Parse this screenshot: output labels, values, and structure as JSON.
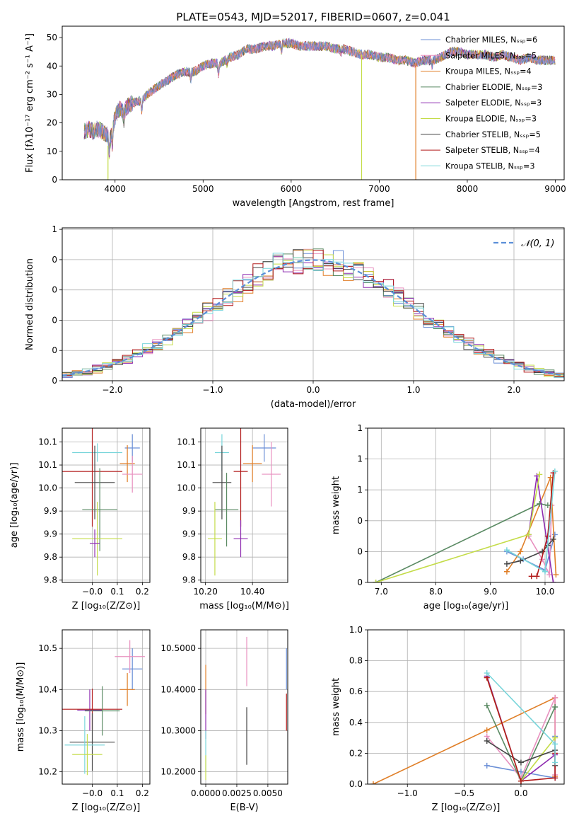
{
  "chart_data": [
    {
      "id": "spectrum",
      "type": "line",
      "title": "PLATE=0543, MJD=52017, FIBERID=0607, z=0.041",
      "xlabel": "wavelength [Angstrom, rest frame]",
      "ylabel": "Flux [fλ10⁻¹⁷ erg cm⁻² s⁻¹ A⁻¹]",
      "xlim": [
        3400,
        9100
      ],
      "ylim": [
        0,
        54
      ],
      "xticks": [
        4000,
        5000,
        6000,
        7000,
        8000,
        9000
      ],
      "yticks": [
        0,
        10,
        20,
        30,
        40,
        50
      ],
      "legend_position": "upper-right",
      "continuum": [
        [
          3650,
          17
        ],
        [
          3700,
          18
        ],
        [
          3750,
          17
        ],
        [
          3800,
          18
        ],
        [
          3850,
          17
        ],
        [
          3900,
          16
        ],
        [
          3950,
          15
        ],
        [
          4000,
          22
        ],
        [
          4050,
          25
        ],
        [
          4100,
          24
        ],
        [
          4150,
          26
        ],
        [
          4200,
          27
        ],
        [
          4300,
          28
        ],
        [
          4400,
          31
        ],
        [
          4500,
          33
        ],
        [
          4600,
          35
        ],
        [
          4700,
          37
        ],
        [
          4800,
          38
        ],
        [
          4900,
          38
        ],
        [
          5000,
          40
        ],
        [
          5100,
          41
        ],
        [
          5200,
          41
        ],
        [
          5300,
          43
        ],
        [
          5400,
          44
        ],
        [
          5500,
          46
        ],
        [
          5600,
          46
        ],
        [
          5700,
          47
        ],
        [
          5800,
          47
        ],
        [
          5900,
          48
        ],
        [
          6000,
          48
        ],
        [
          6100,
          47
        ],
        [
          6200,
          47
        ],
        [
          6300,
          47
        ],
        [
          6400,
          47
        ],
        [
          6500,
          46
        ],
        [
          6600,
          46
        ],
        [
          6700,
          45
        ],
        [
          6800,
          44
        ],
        [
          6900,
          44
        ],
        [
          7000,
          43
        ],
        [
          7100,
          43
        ],
        [
          7200,
          42
        ],
        [
          7300,
          42
        ],
        [
          7400,
          41
        ],
        [
          7500,
          42
        ],
        [
          7600,
          42
        ],
        [
          7700,
          43
        ],
        [
          7800,
          45
        ],
        [
          7900,
          45
        ],
        [
          8000,
          44
        ],
        [
          8100,
          44
        ],
        [
          8200,
          44
        ],
        [
          8300,
          43
        ],
        [
          8400,
          44
        ],
        [
          8500,
          43
        ],
        [
          8600,
          42
        ],
        [
          8700,
          43
        ],
        [
          8800,
          42
        ],
        [
          8900,
          42
        ],
        [
          9000,
          42
        ]
      ],
      "series": [
        {
          "name": "Chabrier MILES, Nₛₛₚ=6",
          "color": "#6b8fd6"
        },
        {
          "name": "Salpeter MILES, Nₛₛₚ=5",
          "color": "#e890bf"
        },
        {
          "name": "Kroupa MILES, Nₛₛₚ=4",
          "color": "#e07f28"
        },
        {
          "name": "Chabrier ELODIE, Nₛₛₚ=3",
          "color": "#5a8a63"
        },
        {
          "name": "Salpeter ELODIE, Nₛₛₚ=3",
          "color": "#8e2bb0"
        },
        {
          "name": "Kroupa ELODIE, Nₛₛₚ=3",
          "color": "#c4dc48"
        },
        {
          "name": "Chabrier STELIB, Nₛₛₚ=5",
          "color": "#444444"
        },
        {
          "name": "Salpeter STELIB, Nₛₛₚ=4",
          "color": "#b21a1a"
        },
        {
          "name": "Kroupa STELIB, Nₛₛₚ=3",
          "color": "#78d5da"
        }
      ],
      "spikes": [
        {
          "x": 3920,
          "y_from": 12,
          "y_to": 0,
          "color": "#c4dc48"
        },
        {
          "x": 6800,
          "y_from": 44,
          "y_to": 0,
          "color": "#c4dc48"
        },
        {
          "x": 7415,
          "y_from": 41,
          "y_to": 0,
          "color": "#e07f28"
        }
      ]
    },
    {
      "id": "residuals",
      "type": "histogram",
      "xlabel": "(data-model)/error",
      "ylabel": "Normed distribution",
      "xlim": [
        -2.5,
        2.5
      ],
      "ylim": [
        0,
        0.505
      ],
      "xticks": [
        -2,
        -1,
        0,
        1,
        2
      ],
      "yticks": [
        0.0,
        0.1,
        0.2,
        0.3,
        0.4,
        0.5
      ],
      "grid": true,
      "legend": "𝒩(0, 1)",
      "legend_position": "upper-right",
      "reference_color": "#5b8fd8",
      "bin_start": -2.5,
      "bin_width": 0.1
    },
    {
      "id": "age-vs-Z",
      "type": "errorbar",
      "xlabel": "Z [log₁₀(Z/Z⊙)]",
      "ylabel": "age  [log₁₀(age/yr)]",
      "xlim": [
        -0.12,
        0.23
      ],
      "ylim": [
        9.795,
        10.13
      ],
      "xticks": [
        -0.0,
        0.1,
        0.2
      ],
      "xticklabels": [
        "−0.0",
        "0.1",
        "0.2"
      ],
      "yticks": [
        9.8,
        9.85,
        9.9,
        9.95,
        10.0,
        10.05,
        10.1
      ],
      "grid": true,
      "points": [
        {
          "x": 0.16,
          "y": 10.087,
          "xerr": 0.03,
          "yerr": 0.03,
          "color": "#6b8fd6"
        },
        {
          "x": 0.14,
          "y": 10.053,
          "xerr": 0.03,
          "yerr": 0.04,
          "color": "#e07f28"
        },
        {
          "x": 0.16,
          "y": 10.03,
          "xerr": 0.04,
          "yerr": 0.04,
          "color": "#e890bf"
        },
        {
          "x": 0.02,
          "y": 10.077,
          "xerr": 0.1,
          "yerr": 0.02,
          "color": "#78d5da"
        },
        {
          "x": 0.0,
          "y": 10.036,
          "xerr": 0.12,
          "yerr": 0.12,
          "color": "#b21a1a"
        },
        {
          "x": 0.01,
          "y": 10.012,
          "xerr": 0.08,
          "yerr": 0.08,
          "color": "#444444"
        },
        {
          "x": 0.03,
          "y": 9.953,
          "xerr": 0.07,
          "yerr": 0.09,
          "color": "#5a8a63"
        },
        {
          "x": 0.02,
          "y": 9.89,
          "xerr": 0.1,
          "yerr": 0.08,
          "color": "#c4dc48"
        },
        {
          "x": 0.01,
          "y": 9.88,
          "xerr": 0.02,
          "yerr": 0.03,
          "color": "#8e2bb0"
        }
      ]
    },
    {
      "id": "age-vs-mass",
      "type": "errorbar",
      "xlabel": "mass [log₁₀(M/M⊙)]",
      "ylabel": "",
      "xlim": [
        10.18,
        10.55
      ],
      "ylim": [
        9.795,
        10.13
      ],
      "xticks": [
        10.2,
        10.4
      ],
      "yticks": [
        9.8,
        9.85,
        9.9,
        9.95,
        10.0,
        10.05,
        10.1
      ],
      "grid": true,
      "points": [
        {
          "x": 10.45,
          "y": 10.087,
          "xerr": 0.05,
          "yerr": 0.03,
          "color": "#6b8fd6"
        },
        {
          "x": 10.4,
          "y": 10.053,
          "xerr": 0.04,
          "yerr": 0.04,
          "color": "#e07f28"
        },
        {
          "x": 10.48,
          "y": 10.03,
          "xerr": 0.04,
          "yerr": 0.07,
          "color": "#e890bf"
        },
        {
          "x": 10.27,
          "y": 10.077,
          "xerr": 0.03,
          "yerr": 0.04,
          "color": "#78d5da"
        },
        {
          "x": 10.35,
          "y": 10.036,
          "xerr": 0.03,
          "yerr": 0.12,
          "color": "#b21a1a"
        },
        {
          "x": 10.27,
          "y": 10.012,
          "xerr": 0.04,
          "yerr": 0.08,
          "color": "#444444"
        },
        {
          "x": 10.29,
          "y": 9.953,
          "xerr": 0.05,
          "yerr": 0.08,
          "color": "#5a8a63"
        },
        {
          "x": 10.24,
          "y": 9.89,
          "xerr": 0.03,
          "yerr": 0.08,
          "color": "#c4dc48"
        },
        {
          "x": 10.35,
          "y": 9.89,
          "xerr": 0.03,
          "yerr": 0.04,
          "color": "#8e2bb0"
        }
      ]
    },
    {
      "id": "weight-vs-age",
      "type": "line",
      "xlabel": "age  [log₁₀(age/yr)]",
      "ylabel": "mass weight",
      "xlim": [
        6.75,
        10.35
      ],
      "ylim": [
        0,
        1
      ],
      "xticks": [
        7,
        8,
        9,
        10
      ],
      "yticks": [
        0.0,
        0.2,
        0.4,
        0.6,
        0.8,
        1.0
      ],
      "grid": true,
      "series": [
        {
          "color": "#6b8fd6",
          "points": [
            [
              9.3,
              0.2
            ],
            [
              9.6,
              0.15
            ],
            [
              10.0,
              0.08
            ],
            [
              10.18,
              0.31
            ]
          ]
        },
        {
          "color": "#e890bf",
          "points": [
            [
              9.7,
              0.3
            ],
            [
              9.95,
              0.15
            ],
            [
              10.08,
              0.05
            ],
            [
              10.12,
              0.5
            ]
          ]
        },
        {
          "color": "#e07f28",
          "points": [
            [
              9.3,
              0.07
            ],
            [
              9.55,
              0.2
            ],
            [
              10.1,
              0.68
            ],
            [
              10.2,
              0.05
            ]
          ]
        },
        {
          "color": "#5a8a63",
          "points": [
            [
              6.9,
              0.0
            ],
            [
              9.9,
              0.51
            ],
            [
              10.05,
              0.5
            ]
          ]
        },
        {
          "color": "#8e2bb0",
          "points": [
            [
              9.7,
              0.31
            ],
            [
              9.85,
              0.69
            ],
            [
              10.15,
              0.0
            ]
          ]
        },
        {
          "color": "#c4dc48",
          "points": [
            [
              6.9,
              0.0
            ],
            [
              9.7,
              0.31
            ],
            [
              9.9,
              0.7
            ]
          ]
        },
        {
          "color": "#444444",
          "points": [
            [
              9.3,
              0.12
            ],
            [
              9.55,
              0.14
            ],
            [
              9.95,
              0.2
            ],
            [
              10.05,
              0.24
            ],
            [
              10.15,
              0.28
            ]
          ]
        },
        {
          "color": "#b21a1a",
          "points": [
            [
              9.75,
              0.04
            ],
            [
              9.85,
              0.04
            ],
            [
              10.05,
              0.3
            ],
            [
              10.15,
              0.71
            ]
          ]
        },
        {
          "color": "#78d5da",
          "points": [
            [
              9.3,
              0.21
            ],
            [
              10.0,
              0.07
            ],
            [
              10.18,
              0.72
            ]
          ]
        }
      ]
    },
    {
      "id": "mass-vs-Z",
      "type": "errorbar",
      "xlabel": "Z [log₁₀(Z/Z⊙)]",
      "ylabel": "mass [log₁₀(M/M⊙)]",
      "xlim": [
        -0.12,
        0.23
      ],
      "ylim": [
        10.17,
        10.545
      ],
      "xticks": [
        -0.0,
        0.1,
        0.2
      ],
      "xticklabels": [
        "−0.0",
        "0.1",
        "0.2"
      ],
      "yticks": [
        10.2,
        10.3,
        10.4,
        10.5
      ],
      "grid": true,
      "points": [
        {
          "x": 0.16,
          "y": 10.45,
          "xerr": 0.04,
          "yerr": 0.05,
          "color": "#6b8fd6"
        },
        {
          "x": 0.15,
          "y": 10.48,
          "xerr": 0.06,
          "yerr": 0.04,
          "color": "#e890bf"
        },
        {
          "x": 0.14,
          "y": 10.4,
          "xerr": 0.03,
          "yerr": 0.04,
          "color": "#e07f28"
        },
        {
          "x": -0.01,
          "y": 10.35,
          "xerr": 0.05,
          "yerr": 0.05,
          "color": "#8e2bb0"
        },
        {
          "x": 0.0,
          "y": 10.352,
          "xerr": 0.12,
          "yerr": 0.05,
          "color": "#b21a1a"
        },
        {
          "x": 0.04,
          "y": 10.348,
          "xerr": 0.07,
          "yerr": 0.06,
          "color": "#5a8a63"
        },
        {
          "x": 0.0,
          "y": 10.272,
          "xerr": 0.09,
          "yerr": 0.07,
          "color": "#444444"
        },
        {
          "x": -0.03,
          "y": 10.265,
          "xerr": 0.08,
          "yerr": 0.07,
          "color": "#78d5da"
        },
        {
          "x": -0.02,
          "y": 10.242,
          "xerr": 0.06,
          "yerr": 0.05,
          "color": "#c4dc48"
        }
      ]
    },
    {
      "id": "mass-vs-EBV",
      "type": "errorbar",
      "xlabel": "E(B-V)",
      "ylabel": "",
      "xlim": [
        -0.0004,
        0.0066
      ],
      "ylim": [
        10.17,
        10.545
      ],
      "xticks": [
        0.0,
        0.0025,
        0.005
      ],
      "xticklabels": [
        "0.0000",
        "0.0025",
        "0.0050"
      ],
      "yticks": [
        10.2,
        10.3,
        10.4,
        10.5
      ],
      "grid": true,
      "points": [
        {
          "x": 0.0,
          "y": 10.4,
          "xerr": 0,
          "yerr": 0.06,
          "color": "#e07f28"
        },
        {
          "x": 0.0,
          "y": 10.34,
          "xerr": 0,
          "yerr": 0.06,
          "color": "#8e2bb0"
        },
        {
          "x": 0.0,
          "y": 10.25,
          "xerr": 0,
          "yerr": 0.05,
          "color": "#78d5da"
        },
        {
          "x": 0.0,
          "y": 10.21,
          "xerr": 0,
          "yerr": 0.03,
          "color": "#c4dc48"
        },
        {
          "x": 0.0033,
          "y": 10.468,
          "xerr": 0,
          "yerr": 0.06,
          "color": "#e890bf"
        },
        {
          "x": 0.0033,
          "y": 10.287,
          "xerr": 0,
          "yerr": 0.07,
          "color": "#444444"
        },
        {
          "x": 0.0065,
          "y": 10.45,
          "xerr": 0,
          "yerr": 0.05,
          "color": "#6b8fd6"
        },
        {
          "x": 0.0065,
          "y": 10.345,
          "xerr": 0,
          "yerr": 0.045,
          "color": "#b21a1a"
        }
      ]
    },
    {
      "id": "weight-vs-Z",
      "type": "line",
      "xlabel": "Z [log₁₀(Z/Z⊙)]",
      "ylabel": "mass weight",
      "xlim": [
        -1.35,
        0.38
      ],
      "ylim": [
        0,
        1
      ],
      "xticks": [
        -1.0,
        -0.5,
        0.0
      ],
      "xticklabels": [
        "−1.0",
        "−0.5",
        "0.0"
      ],
      "yticks": [
        0.0,
        0.2,
        0.4,
        0.6,
        0.8,
        1.0
      ],
      "grid": true,
      "series": [
        {
          "color": "#e07f28",
          "points": [
            [
              -1.3,
              0.0
            ],
            [
              -0.3,
              0.35
            ],
            [
              0.3,
              0.56
            ],
            [
              0.3,
              0.05
            ]
          ]
        },
        {
          "color": "#6b8fd6",
          "points": [
            [
              -0.3,
              0.12
            ],
            [
              0.0,
              0.08
            ],
            [
              0.3,
              0.04
            ],
            [
              0.3,
              0.31
            ]
          ]
        },
        {
          "color": "#e890bf",
          "points": [
            [
              -0.3,
              0.31
            ],
            [
              0.0,
              0.04
            ],
            [
              0.3,
              0.56
            ],
            [
              0.3,
              0.06
            ]
          ]
        },
        {
          "color": "#5a8a63",
          "points": [
            [
              -0.3,
              0.51
            ],
            [
              0.0,
              0.02
            ],
            [
              0.3,
              0.5
            ]
          ]
        },
        {
          "color": "#8e2bb0",
          "points": [
            [
              -0.3,
              0.7
            ],
            [
              0.0,
              0.02
            ],
            [
              0.3,
              0.19
            ]
          ]
        },
        {
          "color": "#c4dc48",
          "points": [
            [
              -0.3,
              0.69
            ],
            [
              0.0,
              0.02
            ],
            [
              0.3,
              0.3
            ]
          ]
        },
        {
          "color": "#444444",
          "points": [
            [
              -0.3,
              0.28
            ],
            [
              0.0,
              0.14
            ],
            [
              0.3,
              0.22
            ],
            [
              0.3,
              0.12
            ]
          ]
        },
        {
          "color": "#b21a1a",
          "points": [
            [
              -0.3,
              0.69
            ],
            [
              0.0,
              0.02
            ],
            [
              0.3,
              0.04
            ],
            [
              0.3,
              0.2
            ]
          ]
        },
        {
          "color": "#78d5da",
          "points": [
            [
              -0.3,
              0.72
            ],
            [
              0.3,
              0.26
            ],
            [
              0.3,
              0.14
            ]
          ]
        }
      ]
    }
  ]
}
